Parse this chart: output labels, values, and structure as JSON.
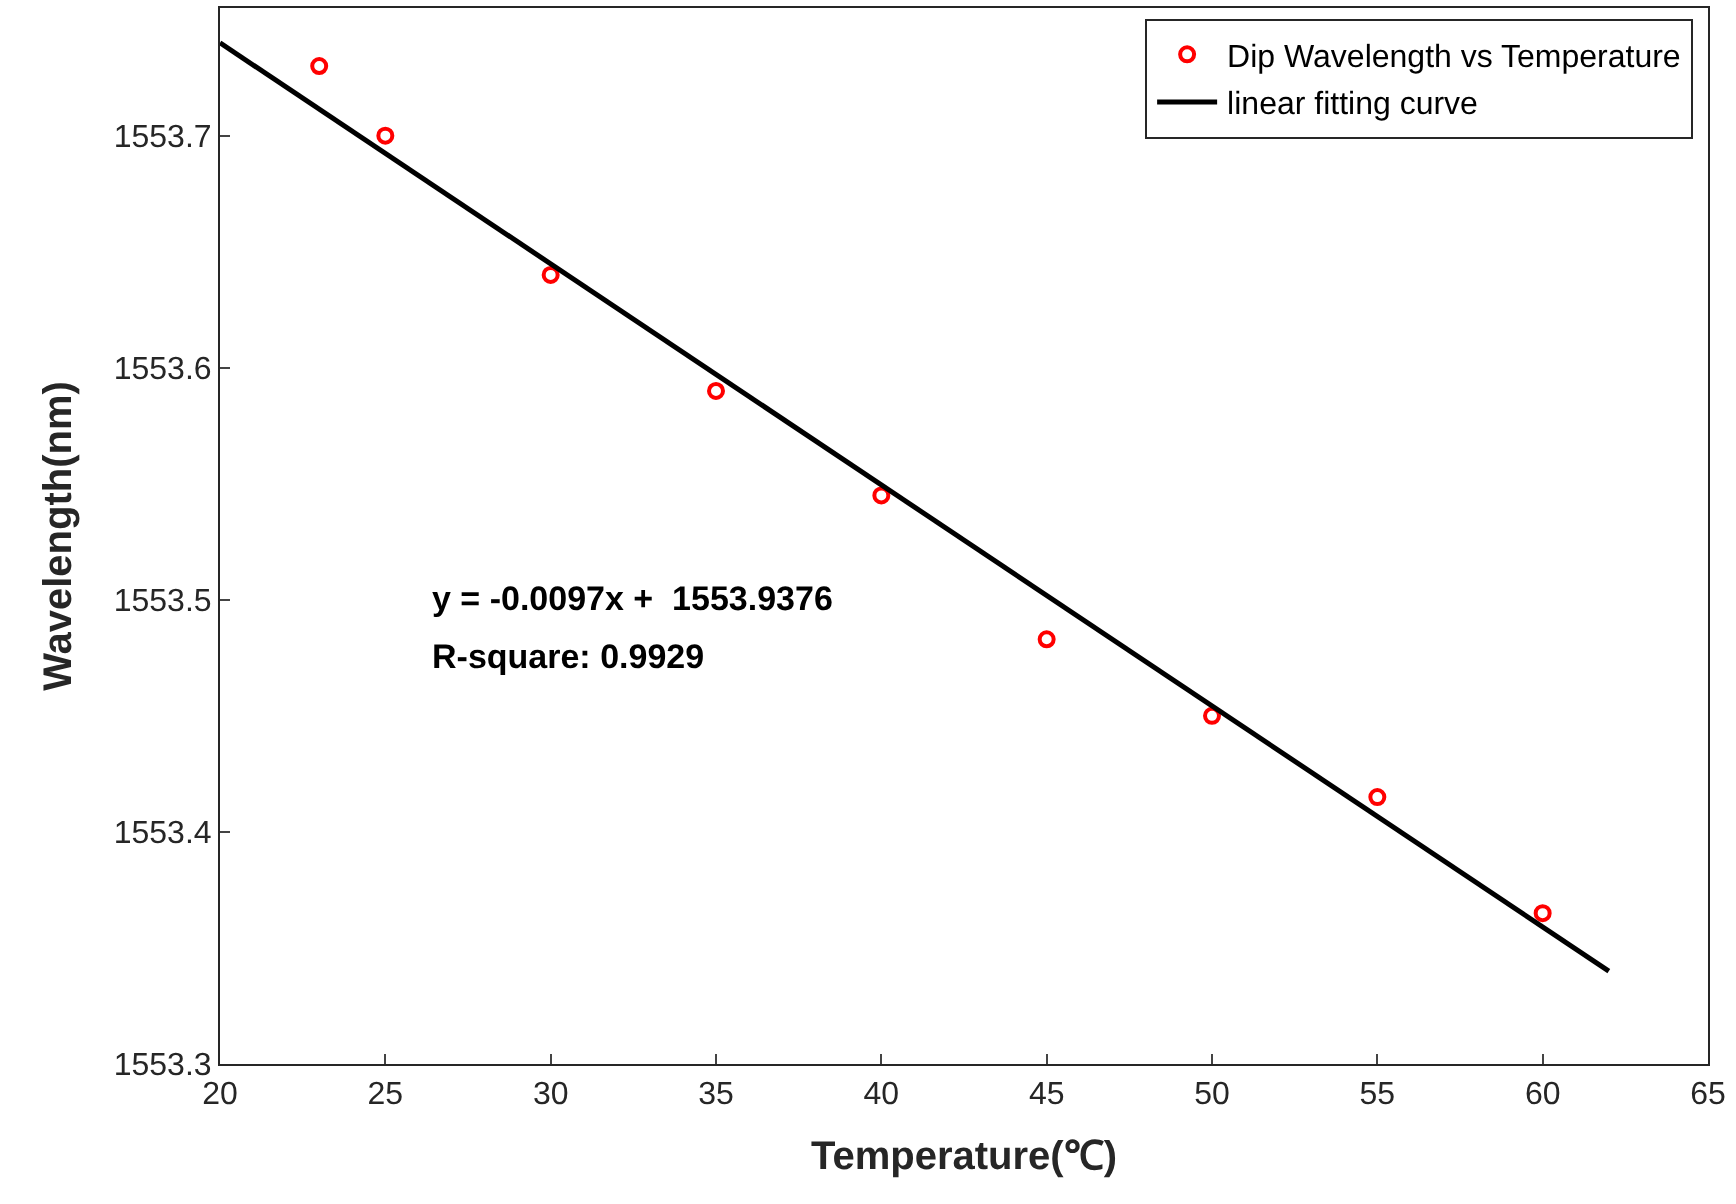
{
  "chart_data": {
    "type": "scatter",
    "xlabel": "Temperature(℃)",
    "ylabel": "Wavelength(nm)",
    "xlim": [
      20,
      65
    ],
    "xticks": [
      20,
      25,
      30,
      35,
      40,
      45,
      50,
      55,
      60,
      65
    ],
    "ylim": [
      1553.3,
      1553.755
    ],
    "yticks": [
      1553.3,
      1553.4,
      1553.5,
      1553.6,
      1553.7
    ],
    "series": [
      {
        "name": "Dip Wavelength vs Temperature",
        "color": "#ff0000",
        "marker": "circle",
        "x": [
          23,
          25,
          30,
          35,
          40,
          45,
          50,
          55,
          60
        ],
        "values": [
          1553.73,
          1553.7,
          1553.64,
          1553.59,
          1553.545,
          1553.483,
          1553.45,
          1553.415,
          1553.365
        ]
      },
      {
        "name": "linear fitting curve",
        "type": "line",
        "color": "#000000",
        "line_style": "solid",
        "x": [
          20,
          62
        ],
        "values": [
          1553.74,
          1553.34
        ]
      }
    ],
    "annotations": [
      "y = -0.0097x +  1553.9376",
      "R-square: 0.9929"
    ],
    "legend": "top right"
  }
}
